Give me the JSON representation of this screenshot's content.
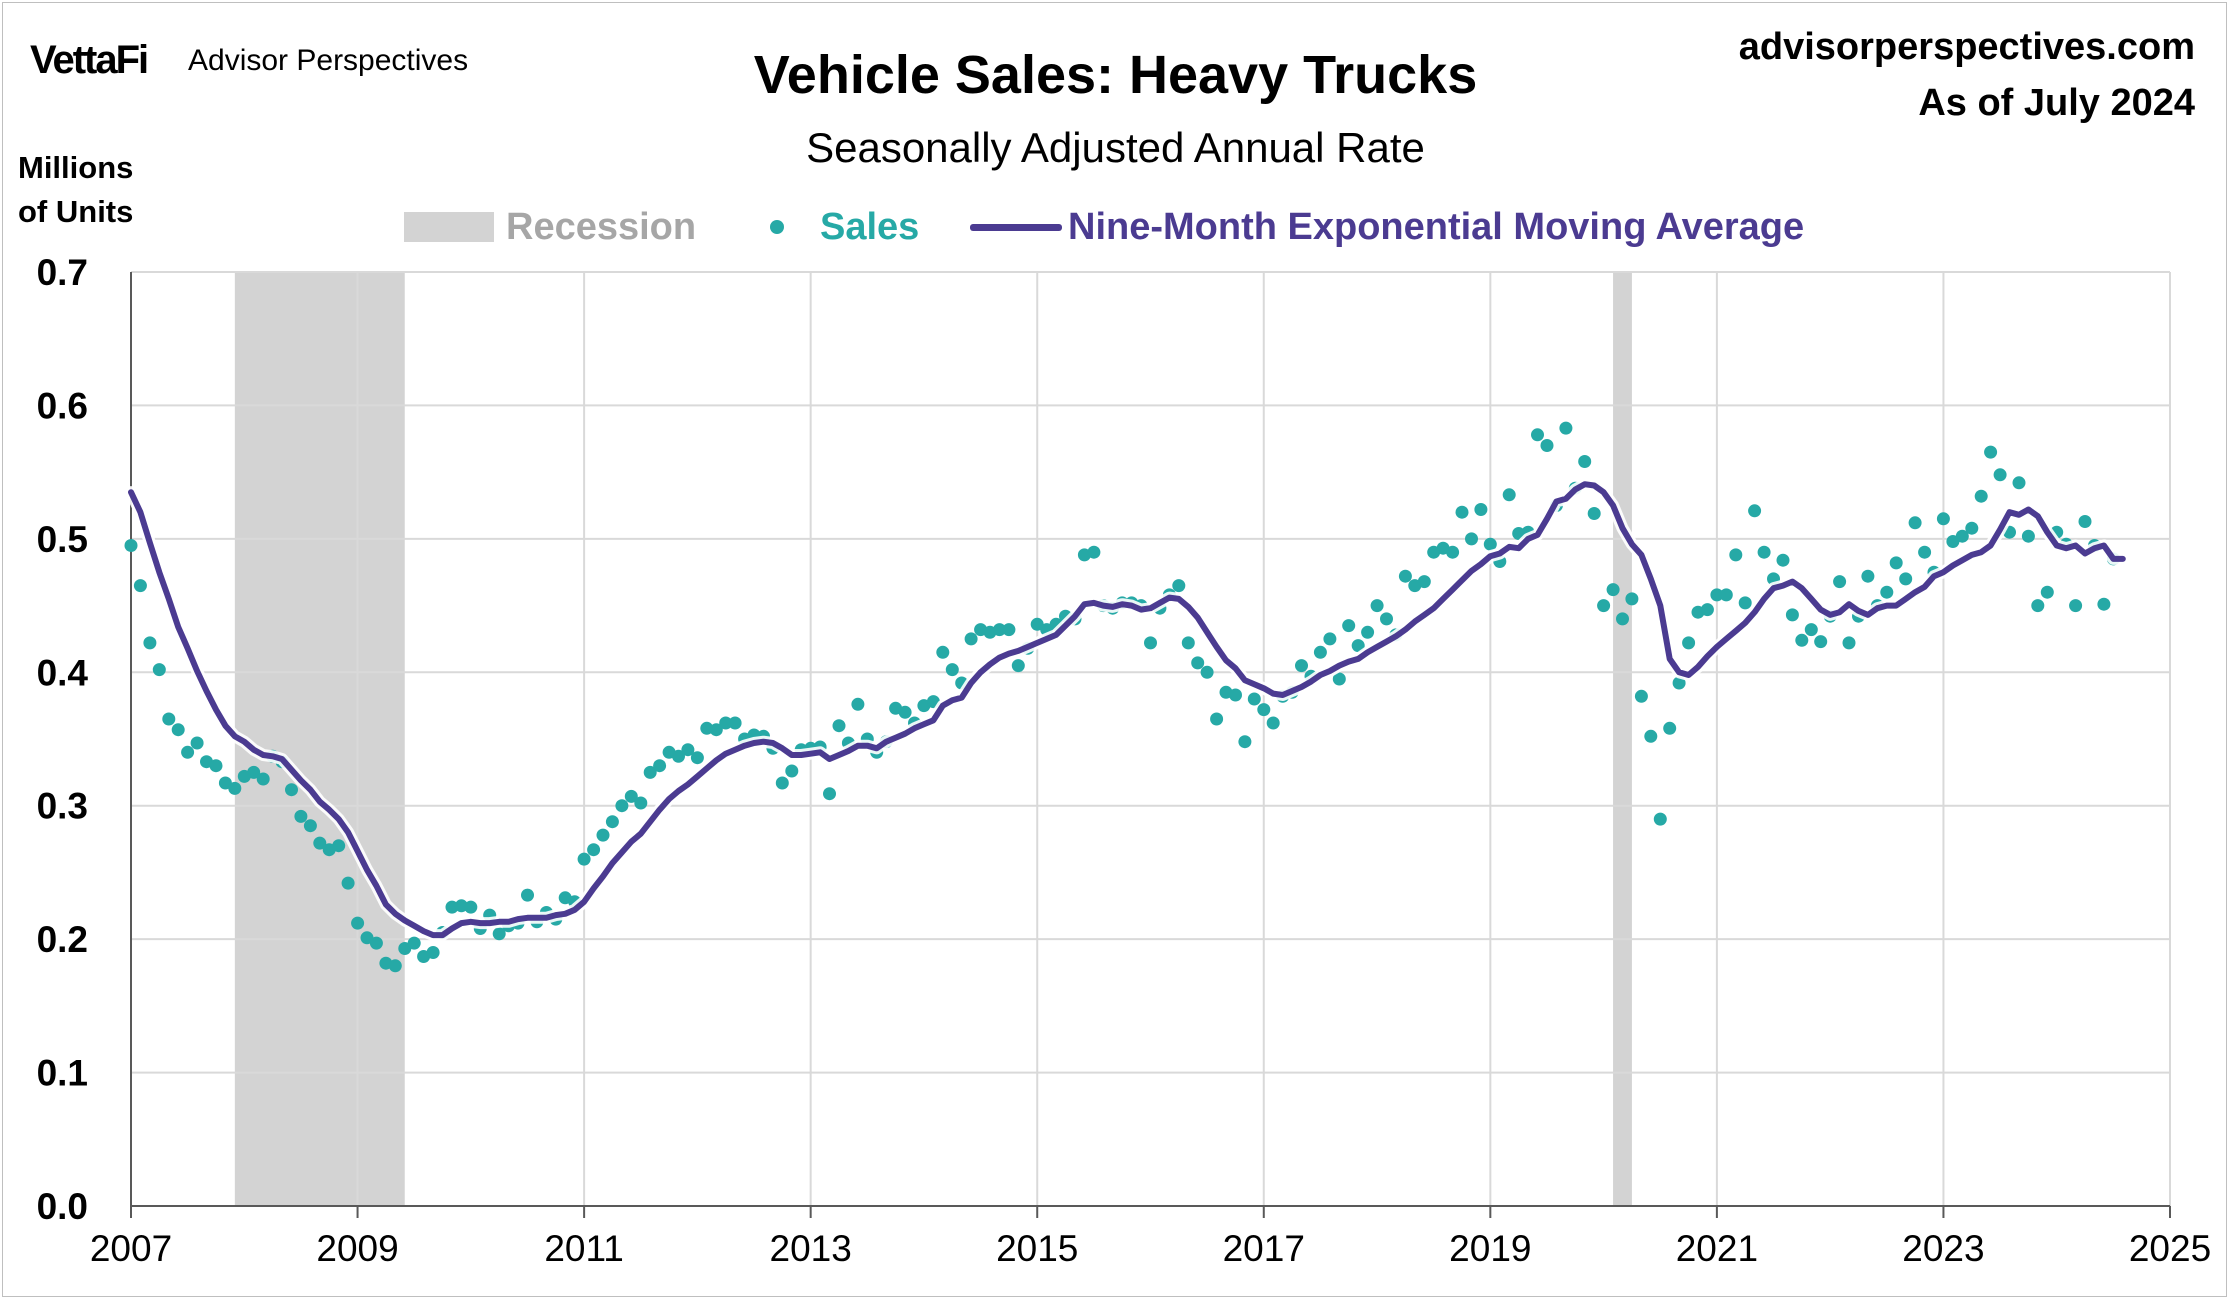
{
  "header": {
    "logo": "VettaFi",
    "logo_sub": "Advisor Perspectives",
    "site": "advisorperspectives.com",
    "as_of": "As of July 2024"
  },
  "chart_data": {
    "type": "scatter",
    "title": "Vehicle Sales: Heavy Trucks",
    "subtitle": "Seasonally Adjusted Annual Rate",
    "ylabel_line1": "Millions",
    "ylabel_line2": "of Units",
    "xlim": [
      2007,
      2025
    ],
    "ylim": [
      0,
      0.7
    ],
    "grid": true,
    "legend_position": "top",
    "x_ticks": [
      "2007",
      "2009",
      "2011",
      "2013",
      "2015",
      "2017",
      "2019",
      "2021",
      "2023",
      "2025"
    ],
    "y_ticks": [
      "0.0",
      "0.1",
      "0.2",
      "0.3",
      "0.4",
      "0.5",
      "0.6",
      "0.7"
    ],
    "colors": {
      "recession": "#d3d3d3",
      "sales": "#26a9a6",
      "ema": "#4b3b91",
      "grid": "#d9d9d9"
    },
    "recessions": [
      {
        "start": "2007-12",
        "end": "2009-06"
      },
      {
        "start": "2020-02",
        "end": "2020-04"
      }
    ],
    "legend": {
      "recession": "Recession",
      "sales": "Sales",
      "ema": "Nine-Month Exponential Moving Average"
    },
    "series": [
      {
        "name": "Sales",
        "kind": "points",
        "start": "2007-01",
        "frequency": "monthly",
        "values": [
          0.495,
          0.465,
          0.422,
          0.402,
          0.365,
          0.357,
          0.34,
          0.347,
          0.333,
          0.33,
          0.317,
          0.313,
          0.322,
          0.325,
          0.32,
          0.337,
          0.333,
          0.312,
          0.292,
          0.285,
          0.272,
          0.267,
          0.27,
          0.242,
          0.212,
          0.201,
          0.197,
          0.182,
          0.18,
          0.193,
          0.197,
          0.187,
          0.19,
          0.205,
          0.224,
          0.225,
          0.224,
          0.208,
          0.218,
          0.204,
          0.21,
          0.212,
          0.233,
          0.213,
          0.22,
          0.215,
          0.231,
          0.228,
          0.26,
          0.267,
          0.278,
          0.288,
          0.3,
          0.307,
          0.302,
          0.325,
          0.33,
          0.34,
          0.337,
          0.342,
          0.336,
          0.358,
          0.357,
          0.362,
          0.362,
          0.35,
          0.353,
          0.352,
          0.343,
          0.317,
          0.326,
          0.342,
          0.343,
          0.344,
          0.309,
          0.36,
          0.347,
          0.376,
          0.35,
          0.34,
          0.348,
          0.373,
          0.37,
          0.362,
          0.375,
          0.378,
          0.415,
          0.402,
          0.392,
          0.425,
          0.432,
          0.43,
          0.432,
          0.432,
          0.405,
          0.418,
          0.436,
          0.432,
          0.436,
          0.442,
          0.44,
          0.488,
          0.49,
          0.45,
          0.448,
          0.452,
          0.452,
          0.45,
          0.422,
          0.448,
          0.458,
          0.465,
          0.422,
          0.407,
          0.4,
          0.365,
          0.385,
          0.383,
          0.348,
          0.38,
          0.372,
          0.362,
          0.382,
          0.385,
          0.405,
          0.397,
          0.415,
          0.425,
          0.395,
          0.435,
          0.42,
          0.43,
          0.45,
          0.44,
          0.428,
          0.472,
          0.465,
          0.468,
          0.49,
          0.493,
          0.49,
          0.52,
          0.5,
          0.522,
          0.496,
          0.483,
          0.533,
          0.504,
          0.505,
          0.578,
          0.57,
          0.525,
          0.583,
          0.538,
          0.558,
          0.519,
          0.45,
          0.462,
          0.44,
          0.455,
          0.382,
          0.352,
          0.29,
          0.358,
          0.392,
          0.422,
          0.445,
          0.447,
          0.458,
          0.458,
          0.488,
          0.452,
          0.521,
          0.49,
          0.47,
          0.484,
          0.443,
          0.424,
          0.432,
          0.423,
          0.442,
          0.468,
          0.422,
          0.442,
          0.472,
          0.45,
          0.46,
          0.482,
          0.47,
          0.512,
          0.49,
          0.475,
          0.515,
          0.498,
          0.502,
          0.508,
          0.532,
          0.565,
          0.548,
          0.505,
          0.542,
          0.502,
          0.45,
          0.46,
          0.505,
          0.496,
          0.45,
          0.513,
          0.495,
          0.451,
          0.485
        ]
      },
      {
        "name": "Nine-Month Exponential Moving Average",
        "kind": "line",
        "start": "2007-01",
        "frequency": "monthly",
        "values": [
          0.535,
          0.52,
          0.497,
          0.475,
          0.455,
          0.434,
          0.418,
          0.401,
          0.386,
          0.372,
          0.36,
          0.352,
          0.348,
          0.342,
          0.338,
          0.337,
          0.335,
          0.327,
          0.319,
          0.312,
          0.303,
          0.297,
          0.29,
          0.28,
          0.266,
          0.252,
          0.24,
          0.226,
          0.219,
          0.214,
          0.21,
          0.206,
          0.203,
          0.203,
          0.208,
          0.212,
          0.213,
          0.212,
          0.212,
          0.213,
          0.213,
          0.215,
          0.216,
          0.216,
          0.216,
          0.218,
          0.219,
          0.222,
          0.228,
          0.238,
          0.247,
          0.257,
          0.265,
          0.273,
          0.279,
          0.288,
          0.297,
          0.305,
          0.311,
          0.316,
          0.322,
          0.328,
          0.334,
          0.339,
          0.342,
          0.345,
          0.347,
          0.348,
          0.347,
          0.343,
          0.338,
          0.338,
          0.339,
          0.34,
          0.335,
          0.338,
          0.341,
          0.345,
          0.345,
          0.343,
          0.348,
          0.351,
          0.354,
          0.358,
          0.361,
          0.364,
          0.375,
          0.379,
          0.381,
          0.392,
          0.4,
          0.406,
          0.411,
          0.414,
          0.416,
          0.419,
          0.422,
          0.425,
          0.428,
          0.435,
          0.442,
          0.451,
          0.452,
          0.45,
          0.449,
          0.451,
          0.45,
          0.447,
          0.448,
          0.452,
          0.456,
          0.455,
          0.449,
          0.441,
          0.43,
          0.419,
          0.409,
          0.403,
          0.394,
          0.391,
          0.388,
          0.384,
          0.383,
          0.386,
          0.389,
          0.393,
          0.398,
          0.401,
          0.405,
          0.408,
          0.41,
          0.415,
          0.419,
          0.423,
          0.427,
          0.432,
          0.438,
          0.443,
          0.448,
          0.455,
          0.462,
          0.469,
          0.476,
          0.481,
          0.487,
          0.489,
          0.494,
          0.493,
          0.5,
          0.503,
          0.515,
          0.528,
          0.53,
          0.537,
          0.541,
          0.54,
          0.535,
          0.525,
          0.508,
          0.496,
          0.488,
          0.47,
          0.45,
          0.41,
          0.4,
          0.398,
          0.404,
          0.412,
          0.419,
          0.425,
          0.431,
          0.437,
          0.445,
          0.455,
          0.463,
          0.465,
          0.468,
          0.463,
          0.455,
          0.447,
          0.443,
          0.445,
          0.451,
          0.446,
          0.443,
          0.448,
          0.45,
          0.45,
          0.455,
          0.46,
          0.464,
          0.472,
          0.475,
          0.48,
          0.484,
          0.488,
          0.49,
          0.495,
          0.507,
          0.52,
          0.518,
          0.522,
          0.517,
          0.505,
          0.495,
          0.493,
          0.495,
          0.489,
          0.493,
          0.495,
          0.485,
          0.485
        ]
      }
    ]
  }
}
